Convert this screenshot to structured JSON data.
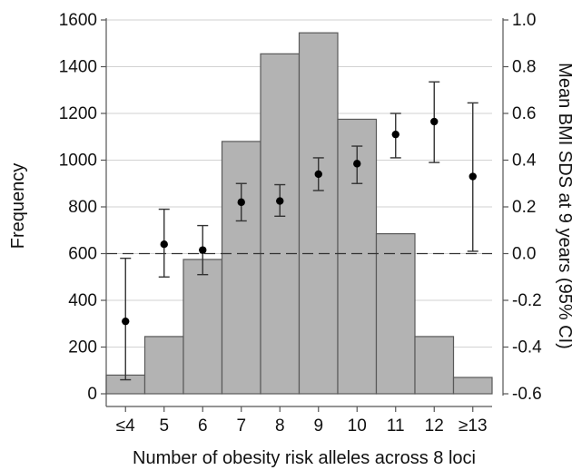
{
  "chart_data": {
    "type": "bar",
    "categories": [
      "≤4",
      "5",
      "6",
      "7",
      "8",
      "9",
      "10",
      "11",
      "12",
      "≥13"
    ],
    "xlabel": "Number of obesity risk alleles across 8 loci",
    "title": "",
    "series": [
      {
        "type": "bar",
        "axis": "left",
        "values": [
          80,
          245,
          575,
          1080,
          1455,
          1545,
          1175,
          685,
          245,
          70
        ],
        "color": "#b3b3b3",
        "edge_color": "#595959"
      },
      {
        "type": "point-errorbar",
        "axis": "right",
        "values": [
          -0.29,
          0.04,
          0.015,
          0.22,
          0.225,
          0.34,
          0.385,
          0.51,
          0.565,
          0.33
        ],
        "ci_low": [
          -0.54,
          -0.1,
          -0.09,
          0.14,
          0.16,
          0.27,
          0.3,
          0.41,
          0.39,
          0.01
        ],
        "ci_high": [
          -0.02,
          0.19,
          0.12,
          0.3,
          0.295,
          0.41,
          0.46,
          0.6,
          0.735,
          0.645
        ],
        "color": "#000000"
      }
    ],
    "y_left": {
      "label": "Frequency",
      "ylim": [
        0,
        1600
      ],
      "ticks": [
        0,
        200,
        400,
        600,
        800,
        1000,
        1200,
        1400,
        1600
      ]
    },
    "y_right": {
      "label": "Mean BMI SDS at 9 years (95% CI)",
      "ylim": [
        -0.6,
        1.0
      ],
      "ticks": [
        -0.6,
        -0.4,
        -0.2,
        0.0,
        0.2,
        0.4,
        0.6,
        0.8,
        1.0
      ],
      "tick_labels": [
        "-0.6",
        "-0.4",
        "-0.2",
        "0.0",
        "0.2",
        "0.4",
        "0.6",
        "0.8",
        "1.0"
      ]
    },
    "reference_line": {
      "axis": "right",
      "value": 0.0,
      "style": "dashed"
    },
    "grid": true,
    "legend": "none"
  }
}
